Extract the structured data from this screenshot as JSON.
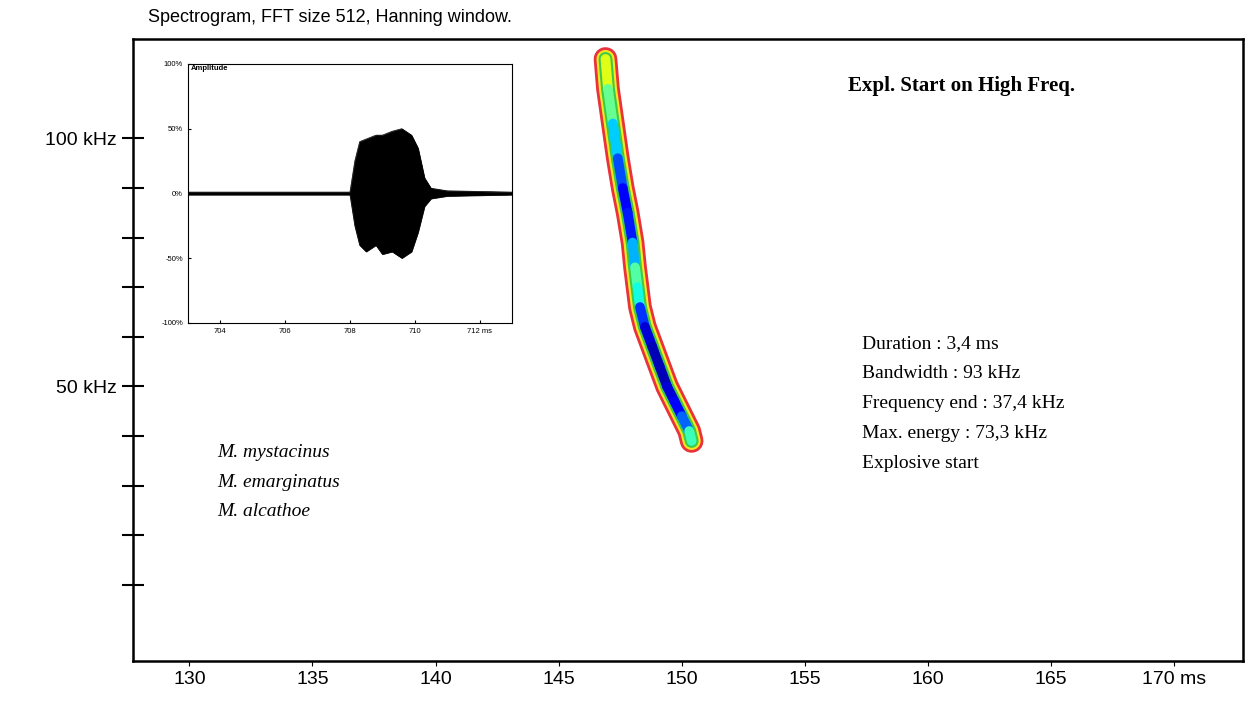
{
  "chart_data": {
    "type": "spectrogram",
    "title": "Spectrogram, FFT size 512, Hanning window.",
    "xlim": [
      127.7,
      172.8
    ],
    "xticks": [
      130,
      135,
      140,
      145,
      150,
      155,
      160,
      165,
      {
        "value": 170,
        "label": "170 ms"
      }
    ],
    "ylim": [
      -5.4,
      120
    ],
    "yticks": [
      {
        "value": 50,
        "label": "50 kHz"
      },
      {
        "value": 100,
        "label": "100 kHz"
      }
    ],
    "yticks_unlabeled": [
      10,
      20,
      30,
      40,
      60,
      70,
      80,
      90
    ],
    "x": [
      146.9,
      147.0,
      147.2,
      147.4,
      147.6,
      147.8,
      148.0,
      148.1,
      148.2,
      148.3,
      148.5,
      148.8,
      149.1,
      149.4,
      149.7,
      150.0,
      150.3,
      150.4
    ],
    "values": [
      116,
      110,
      103,
      96,
      90,
      85,
      79,
      74,
      70,
      66,
      62,
      58,
      54,
      50,
      47,
      44,
      41,
      39
    ],
    "energy": [
      0.3,
      0.45,
      0.6,
      0.75,
      0.85,
      0.9,
      0.8,
      0.6,
      0.5,
      0.75,
      0.9,
      0.95,
      0.95,
      0.95,
      0.9,
      0.85,
      0.7,
      0.45
    ],
    "heading": "Expl. Start on High Freq.",
    "measurements": [
      "Duration : 3,4 ms",
      "Bandwidth : 93 kHz",
      "Frequency end : 37,4 kHz",
      "Max. energy : 73,3 kHz",
      "Explosive start"
    ],
    "species": [
      "M. mystacinus",
      "M. emarginatus",
      "M. alcathoe"
    ],
    "inset": {
      "type": "waveform",
      "title": "Amplitude",
      "color": "#000000",
      "x": [
        703,
        708.0,
        708.15,
        708.3,
        708.5,
        708.8,
        709.0,
        709.3,
        709.6,
        709.9,
        710.1,
        710.3,
        710.5,
        711.0,
        713
      ],
      "upper": [
        1,
        1,
        25,
        40,
        42,
        45,
        45,
        48,
        50,
        45,
        35,
        12,
        4,
        2,
        1
      ],
      "lower": [
        -1,
        -1,
        -25,
        -40,
        -45,
        -40,
        -47,
        -45,
        -50,
        -45,
        -30,
        -10,
        -4,
        -2,
        -1
      ],
      "xlim": [
        703,
        713
      ],
      "xticks": [
        704,
        706,
        708,
        710,
        {
          "value": 712,
          "label": "712 ms"
        }
      ],
      "ylim": [
        -100,
        100
      ],
      "yticks": [
        {
          "value": -100,
          "label": "-100%"
        },
        {
          "value": -50,
          "label": "-50%"
        },
        {
          "value": 0,
          "label": "0%"
        },
        {
          "value": 50,
          "label": "50%"
        },
        {
          "value": 100,
          "label": "100%"
        }
      ]
    }
  }
}
